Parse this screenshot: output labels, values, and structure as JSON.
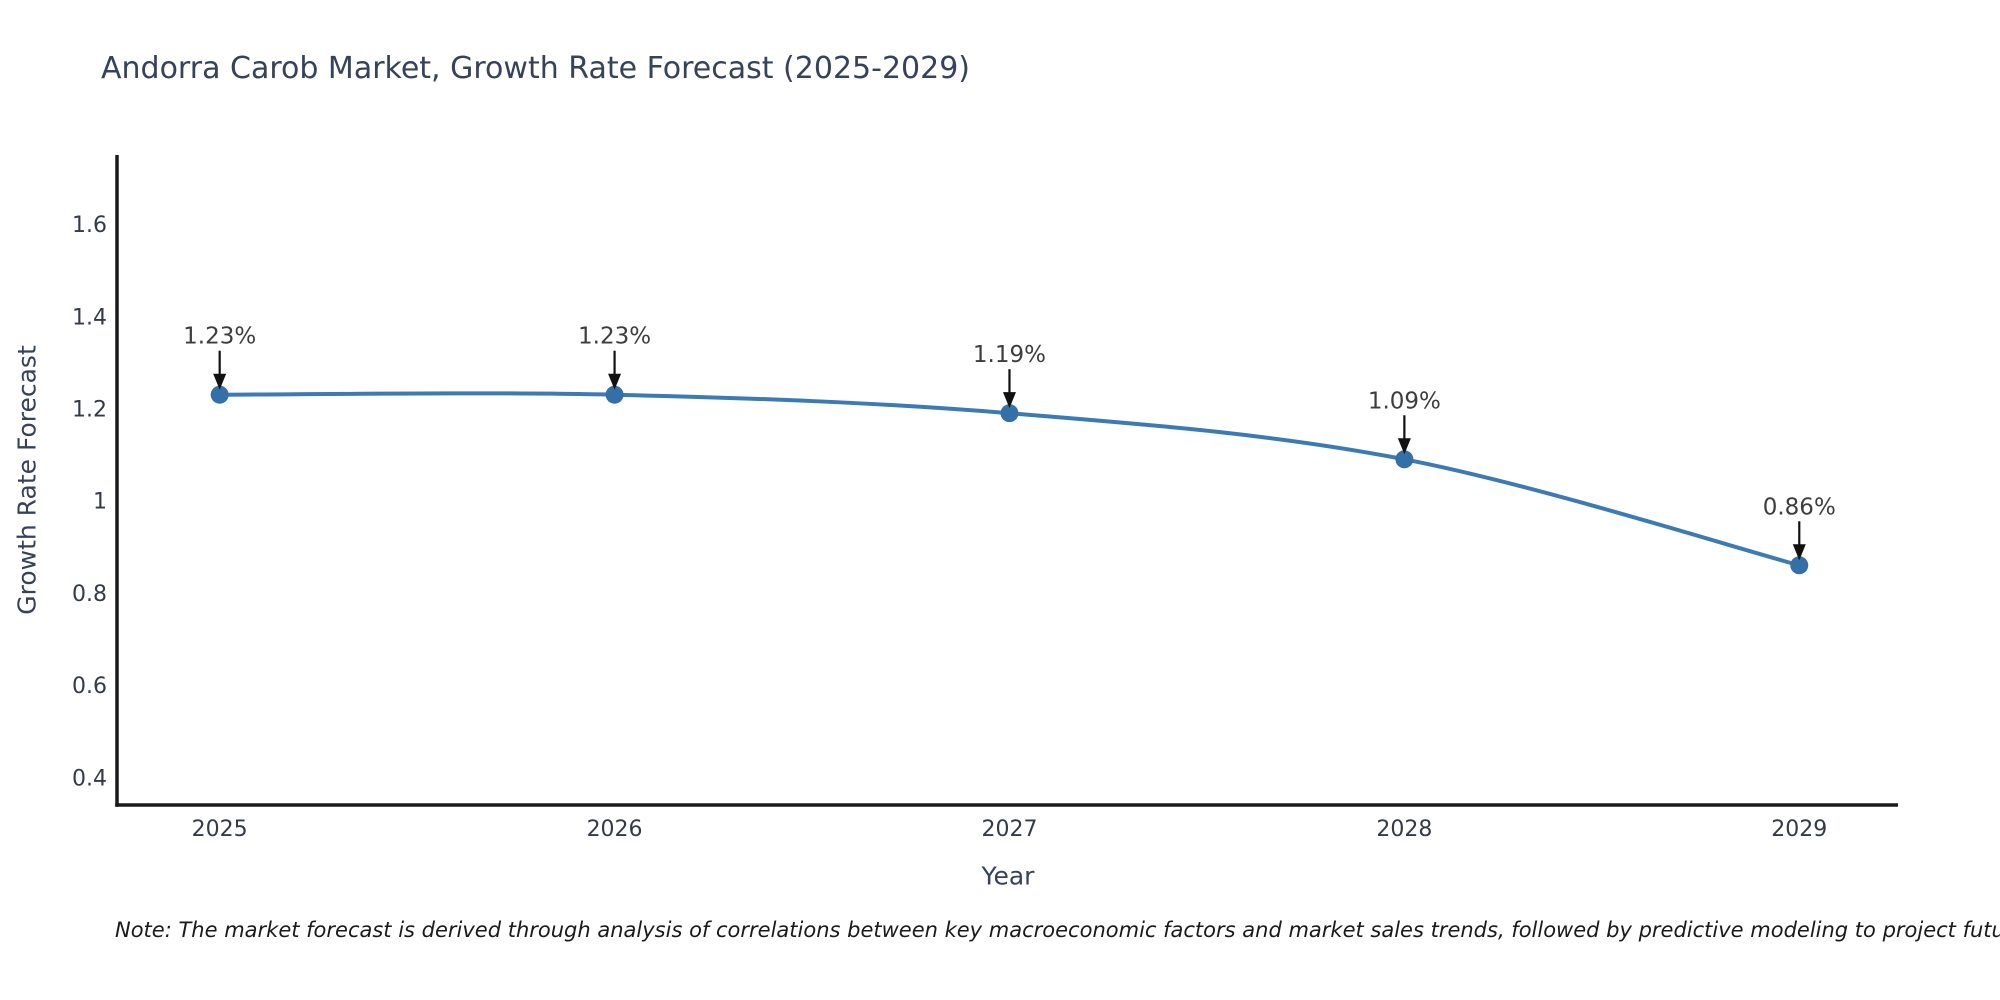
{
  "chart_data": {
    "type": "line",
    "title": "Andorra Carob Market, Growth Rate Forecast (2025-2029)",
    "xlabel": "Year",
    "ylabel": "Growth Rate Forecast",
    "x": [
      2025,
      2026,
      2027,
      2028,
      2029
    ],
    "y": [
      1.23,
      1.23,
      1.19,
      1.09,
      0.86
    ],
    "point_labels": [
      "1.23%",
      "1.23%",
      "1.19%",
      "1.09%",
      "0.86%"
    ],
    "xticks": [
      2025,
      2026,
      2027,
      2028,
      2029
    ],
    "xtick_labels": [
      "2025",
      "2026",
      "2027",
      "2028",
      "2029"
    ],
    "yticks": [
      0.4,
      0.6,
      0.8,
      1.0,
      1.2,
      1.4,
      1.6
    ],
    "ytick_labels": [
      "0.4",
      "0.6",
      "0.8",
      "1",
      "1.2",
      "1.4",
      "1.6"
    ],
    "xlim": [
      2024.74,
      2029.25
    ],
    "ylim": [
      0.34,
      1.75
    ],
    "grid": false,
    "legend": null,
    "smooth": true,
    "line_color": "#3c7ab6",
    "marker_color": "#356fa8",
    "axis_color": "#1a1a1a",
    "tick_color": "#333a48",
    "label_color": "#36415c",
    "annotation_color": "#3d3d3d",
    "arrow_color": "#111111"
  },
  "note": {
    "text": "Note: The market forecast is derived through analysis of correlations between key macroeconomic factors and market sales trends, followed by predictive modeling to project future sales"
  }
}
